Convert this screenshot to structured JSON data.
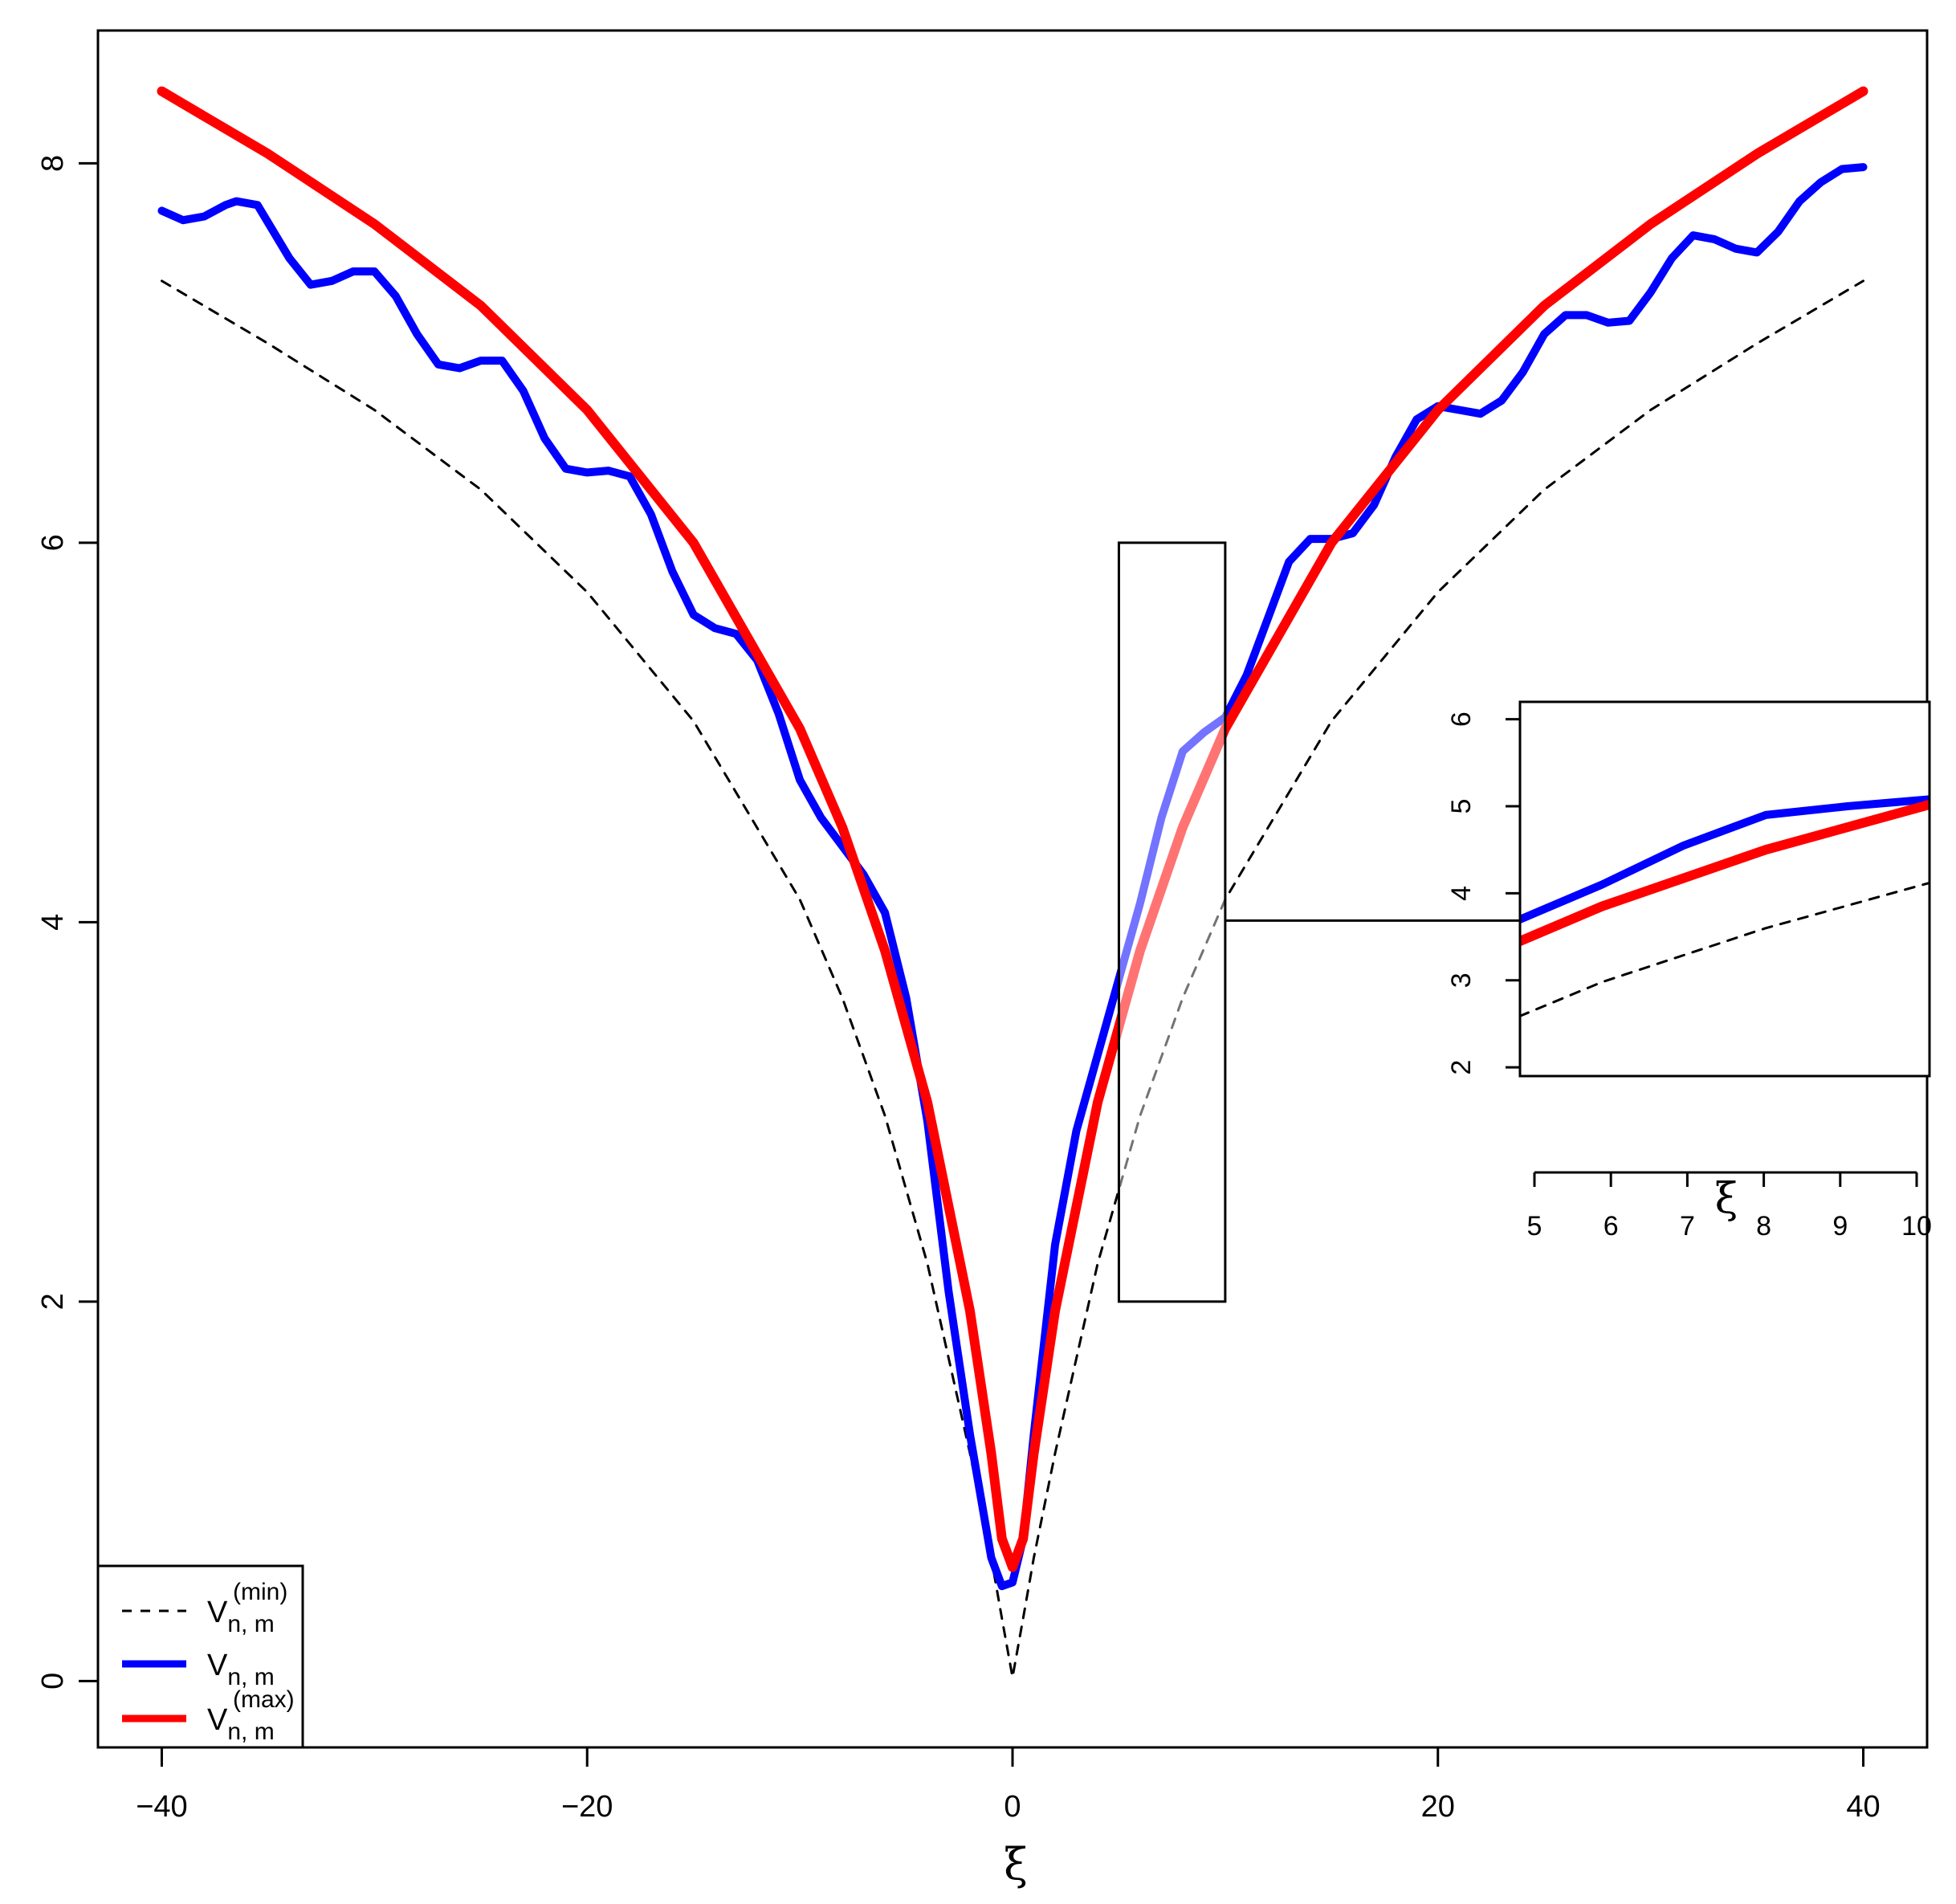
{
  "chart_data": {
    "type": "line",
    "xlabel": "ξ",
    "ylabel": "",
    "xlim": [
      -43,
      43
    ],
    "ylim": [
      -0.35,
      8.7
    ],
    "x_ticks": [
      "-40",
      "-20",
      "0",
      "20",
      "40"
    ],
    "y_ticks": [
      "0",
      "2",
      "4",
      "6",
      "8"
    ],
    "grid": false,
    "legend_position": "bottom-left",
    "legend": [
      {
        "base": "V",
        "sub": "n, m",
        "sup": "(min)",
        "style": "dashed",
        "color": "#000000"
      },
      {
        "base": "V",
        "sub": "n, m",
        "sup": "",
        "style": "solid",
        "color": "#0000ff"
      },
      {
        "base": "V",
        "sub": "n, m",
        "sup": "(max)",
        "style": "solid",
        "color": "#ff0000"
      }
    ],
    "series": [
      {
        "style": "dashed",
        "color": "#000000",
        "x": [
          -40,
          -35,
          -30,
          -25,
          -20,
          -15,
          -10,
          -8,
          -6,
          -4,
          -2,
          -1,
          -0.5,
          0,
          0.5,
          1,
          2,
          4,
          6,
          8,
          10,
          15,
          20,
          25,
          30,
          35,
          40
        ],
        "y": [
          7.38,
          7.05,
          6.7,
          6.28,
          5.74,
          5.06,
          4.12,
          3.6,
          2.98,
          2.2,
          1.2,
          0.65,
          0.33,
          0.02,
          0.33,
          0.65,
          1.2,
          2.2,
          2.98,
          3.6,
          4.12,
          5.06,
          5.74,
          6.28,
          6.7,
          7.05,
          7.38
        ]
      },
      {
        "style": "solid",
        "color": "#0000ff",
        "x": [
          -40,
          -39,
          -38,
          -37,
          -36.5,
          -35.5,
          -34,
          -33,
          -32,
          -31,
          -30,
          -29,
          -28,
          -27,
          -26,
          -25,
          -24,
          -23,
          -22,
          -21,
          -20,
          -19,
          -18,
          -17,
          -16,
          -15,
          -14,
          -13,
          -12,
          -11,
          -10,
          -9,
          -8,
          -7,
          -6,
          -5,
          -4,
          -3,
          -2,
          -1,
          -0.5,
          0,
          0.5,
          1,
          2,
          3,
          4,
          5,
          6,
          7,
          8,
          9,
          10,
          11,
          12,
          13,
          14,
          15,
          16,
          17,
          18,
          19,
          20,
          21,
          22,
          23,
          24,
          25,
          26,
          27,
          28,
          29,
          30,
          31,
          32,
          33,
          34,
          35,
          36,
          37,
          38,
          39,
          40
        ],
        "y": [
          7.75,
          7.7,
          7.72,
          7.78,
          7.8,
          7.78,
          7.5,
          7.36,
          7.38,
          7.43,
          7.43,
          7.3,
          7.1,
          6.94,
          6.92,
          6.96,
          6.96,
          6.8,
          6.55,
          6.39,
          6.37,
          6.38,
          6.35,
          6.15,
          5.85,
          5.62,
          5.55,
          5.52,
          5.38,
          5.1,
          4.75,
          4.55,
          4.4,
          4.25,
          4.05,
          3.6,
          2.95,
          2.05,
          1.3,
          0.65,
          0.5,
          0.52,
          0.75,
          1.3,
          2.3,
          2.9,
          3.3,
          3.7,
          4.1,
          4.55,
          4.9,
          5.0,
          5.08,
          5.3,
          5.6,
          5.9,
          6.02,
          6.02,
          6.05,
          6.2,
          6.45,
          6.65,
          6.72,
          6.7,
          6.68,
          6.75,
          6.9,
          7.1,
          7.2,
          7.2,
          7.16,
          7.17,
          7.32,
          7.5,
          7.62,
          7.6,
          7.55,
          7.53,
          7.64,
          7.8,
          7.9,
          7.97,
          7.98
        ]
      },
      {
        "style": "solid",
        "color": "#ff0000",
        "x": [
          -40,
          -35,
          -30,
          -25,
          -20,
          -15,
          -10,
          -8,
          -6,
          -4,
          -2,
          -1,
          -0.5,
          0,
          0.5,
          1,
          2,
          4,
          6,
          8,
          10,
          15,
          20,
          25,
          30,
          35,
          40
        ],
        "y": [
          8.38,
          8.05,
          7.68,
          7.25,
          6.7,
          6.0,
          5.02,
          4.5,
          3.85,
          3.05,
          1.95,
          1.2,
          0.75,
          0.6,
          0.75,
          1.2,
          1.95,
          3.05,
          3.85,
          4.5,
          5.02,
          6.0,
          6.7,
          7.25,
          7.68,
          8.05,
          8.38
        ]
      }
    ],
    "annotations": {
      "highlight_box": {
        "x": [
          5,
          10
        ],
        "y": [
          2,
          6
        ]
      },
      "inset": {
        "xlabel": "ξ",
        "xlim": [
          5,
          10
        ],
        "ylim": [
          1.9,
          6.2
        ],
        "x_ticks": [
          "5",
          "6",
          "7",
          "8",
          "9",
          "10"
        ],
        "y_ticks": [
          "2",
          "3",
          "4",
          "5",
          "6"
        ]
      }
    }
  }
}
